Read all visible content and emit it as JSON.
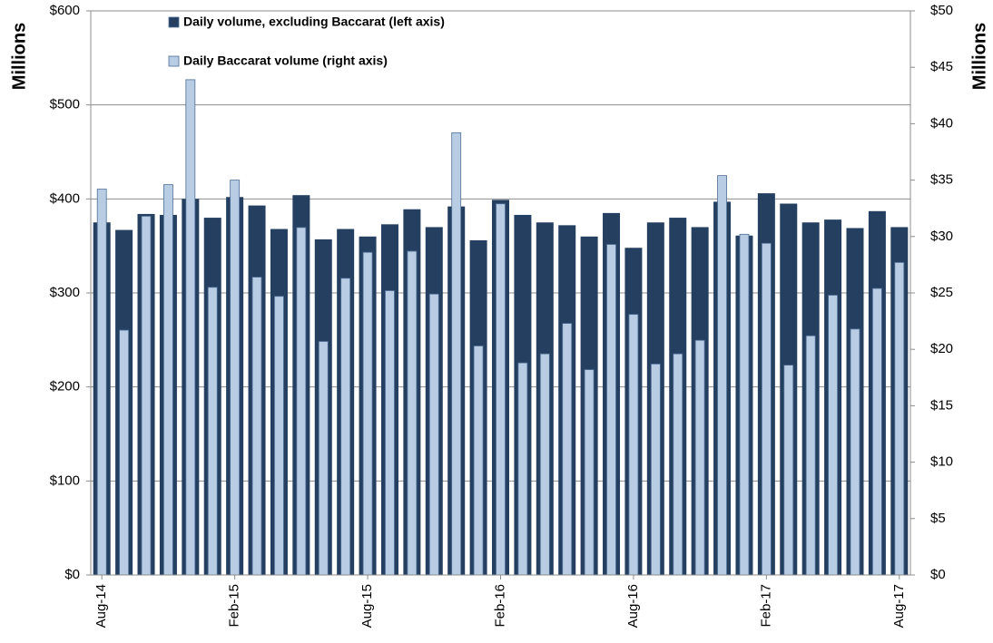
{
  "chart_data": {
    "type": "bar",
    "y_label": "Millions",
    "y2_label": "Millions",
    "categories": [
      "Aug-14",
      null,
      null,
      null,
      null,
      null,
      "Feb-15",
      null,
      null,
      null,
      null,
      null,
      "Aug-15",
      null,
      null,
      null,
      null,
      null,
      "Feb-16",
      null,
      null,
      null,
      null,
      null,
      "Aug-16",
      null,
      null,
      null,
      null,
      null,
      "Feb-17",
      null,
      null,
      null,
      null,
      null,
      "Aug-17"
    ],
    "series": [
      {
        "name": "Daily volume, excluding Baccarat (left axis)",
        "color": "#243f60",
        "values": [
          375,
          367,
          384,
          383,
          400,
          380,
          402,
          393,
          368,
          404,
          357,
          368,
          360,
          373,
          389,
          370,
          392,
          356,
          399,
          383,
          375,
          372,
          360,
          385,
          348,
          375,
          380,
          370,
          397,
          361,
          406,
          395,
          375,
          378,
          369,
          387,
          370
        ]
      },
      {
        "name": "Daily Baccarat volume (right axis)",
        "color": "#b8cce4",
        "axis": "y2",
        "values": [
          34.2,
          21.7,
          31.8,
          34.6,
          43.9,
          25.5,
          35.0,
          26.4,
          24.7,
          30.8,
          20.7,
          26.3,
          28.6,
          25.2,
          28.7,
          24.9,
          39.2,
          20.3,
          32.9,
          18.8,
          19.6,
          22.3,
          18.2,
          29.3,
          23.1,
          18.7,
          19.6,
          20.8,
          35.4,
          30.2,
          29.4,
          18.6,
          21.2,
          24.8,
          21.8,
          25.4,
          27.7
        ]
      }
    ],
    "ylim": [
      0,
      600
    ],
    "yticks": [
      {
        "value": 0,
        "label": "$0"
      },
      {
        "value": 100,
        "label": "$100"
      },
      {
        "value": 200,
        "label": "$200"
      },
      {
        "value": 300,
        "label": "$300"
      },
      {
        "value": 400,
        "label": "$400"
      },
      {
        "value": 500,
        "label": "$500"
      },
      {
        "value": 600,
        "label": "$600"
      }
    ],
    "y2lim": [
      0,
      50
    ],
    "y2ticks": [
      {
        "value": 0,
        "label": "$0"
      },
      {
        "value": 5,
        "label": "$5"
      },
      {
        "value": 10,
        "label": "$10"
      },
      {
        "value": 15,
        "label": "$15"
      },
      {
        "value": 20,
        "label": "$20"
      },
      {
        "value": 25,
        "label": "$25"
      },
      {
        "value": 30,
        "label": "$30"
      },
      {
        "value": 35,
        "label": "$35"
      },
      {
        "value": 40,
        "label": "$40"
      },
      {
        "value": 45,
        "label": "$45"
      },
      {
        "value": 50,
        "label": "$50"
      }
    ],
    "grid": true
  }
}
